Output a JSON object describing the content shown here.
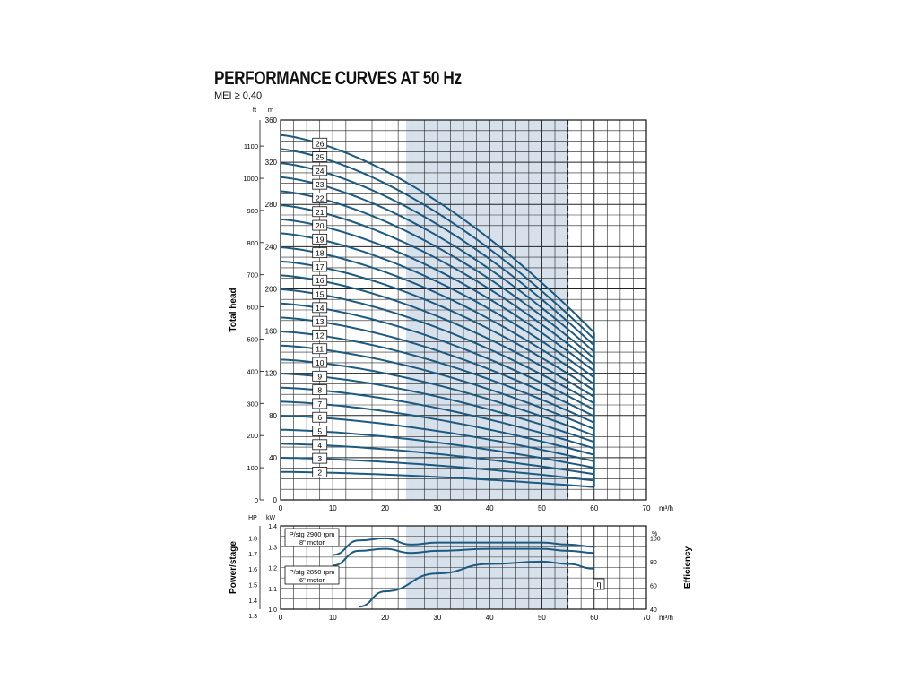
{
  "title": "PERFORMANCE CURVES AT 50 Hz",
  "subtitle": "MEI ≥ 0,40",
  "chart_data": [
    {
      "type": "line",
      "name": "head",
      "xlabel": "m³/h",
      "ylabel": "Total head",
      "y_unit_left": "m",
      "y_unit_ft": "ft",
      "xlim": [
        0,
        70
      ],
      "ylim": [
        0,
        360
      ],
      "x_ticks": [
        0,
        10,
        20,
        30,
        40,
        50,
        60,
        70
      ],
      "y_ticks_m": [
        0,
        40,
        80,
        120,
        160,
        200,
        240,
        280,
        320,
        360
      ],
      "y_ticks_ft": [
        0,
        100,
        200,
        300,
        400,
        500,
        600,
        700,
        800,
        900,
        1000,
        1100
      ],
      "grid": true,
      "operating_range": [
        24,
        55
      ],
      "curve_x_max": 60,
      "stages": [
        26,
        25,
        24,
        23,
        22,
        21,
        20,
        19,
        18,
        17,
        16,
        15,
        14,
        13,
        12,
        11,
        10,
        9,
        8,
        7,
        6,
        5,
        4,
        3,
        2
      ],
      "shutoff_head_per_stage_m": 13.3,
      "head_at_60_per_stage_m": 6.1,
      "stage_label_x": 7.5
    },
    {
      "type": "line",
      "name": "power_efficiency",
      "xlabel": "m³/h",
      "ylabel_left": "Power/stage",
      "ylabel_right": "Efficiency",
      "unit_hp": "HP",
      "unit_kw": "kW",
      "unit_pct": "%",
      "xlim": [
        0,
        70
      ],
      "ylim_kw": [
        1.0,
        1.4
      ],
      "y_ticks_kw": [
        "1.0",
        "1.1",
        "1.2",
        "1.3",
        "1.4"
      ],
      "y_ticks_hp": [
        "1.3",
        "1.4",
        "1.5",
        "1.6",
        "1.7",
        "1.8"
      ],
      "ylim_pct": [
        40,
        110
      ],
      "y_ticks_pct": [
        "40",
        "60",
        "80",
        "100"
      ],
      "x_ticks": [
        0,
        10,
        20,
        30,
        40,
        50,
        60,
        70
      ],
      "labels": {
        "motor8_line1": "P/stg 2900 rpm",
        "motor8_line2": "8\" motor",
        "motor6_line1": "P/stg 2850 rpm",
        "motor6_line2": "6\" motor",
        "eta": "η"
      },
      "series": [
        {
          "x": [
            10,
            15,
            20,
            25,
            30,
            40,
            50,
            55,
            60
          ],
          "values": [
            1.26,
            1.33,
            1.34,
            1.31,
            1.32,
            1.32,
            1.32,
            1.31,
            1.3
          ]
        },
        {
          "x": [
            10,
            15,
            20,
            25,
            30,
            40,
            50,
            55,
            60
          ],
          "values": [
            1.21,
            1.28,
            1.29,
            1.27,
            1.28,
            1.29,
            1.29,
            1.28,
            1.27
          ]
        },
        {
          "x": [
            15,
            20,
            30,
            40,
            50,
            55,
            60
          ],
          "values": [
            42,
            55,
            70,
            78,
            80,
            78,
            74
          ]
        }
      ]
    }
  ]
}
